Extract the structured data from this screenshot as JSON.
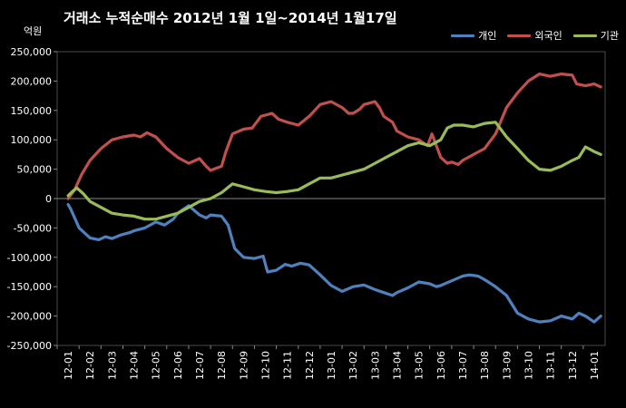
{
  "chart_data": {
    "type": "line",
    "title": "거래소 누적순매수 2012년 1월 1일~2014년 1월17일",
    "ylabel": "억원",
    "xlabel": "",
    "ylim": [
      -250000,
      250000
    ],
    "yticks": [
      "250,000",
      "200,000",
      "150,000",
      "100,000",
      "50,000",
      "0",
      "-50,000",
      "-100,000",
      "-150,000",
      "-200,000",
      "-250,000"
    ],
    "categories": [
      "12-01",
      "12-02",
      "12-03",
      "12-04",
      "12-05",
      "12-06",
      "12-07",
      "12-08",
      "12-09",
      "12-10",
      "12-11",
      "12-12",
      "13-01",
      "13-02",
      "13-03",
      "13-04",
      "13-05",
      "13-06",
      "13-07",
      "13-08",
      "13-09",
      "13-10",
      "13-11",
      "13-12",
      "14-01"
    ],
    "grid": false,
    "legend_position": "top-right",
    "series": [
      {
        "name": "개인",
        "color": "#4f81bd",
        "x": [
          0.0,
          0.12,
          0.5,
          1.0,
          1.4,
          1.7,
          2.0,
          2.4,
          2.8,
          3.0,
          3.5,
          4.0,
          4.4,
          4.8,
          5.0,
          5.5,
          6.0,
          6.3,
          6.5,
          7.0,
          7.3,
          7.6,
          8.0,
          8.5,
          8.9,
          9.1,
          9.5,
          9.9,
          10.2,
          10.6,
          11.0,
          11.5,
          12.0,
          12.5,
          13.0,
          13.5,
          14.0,
          14.4,
          14.8,
          15.0,
          15.5,
          16.0,
          16.5,
          16.8,
          17.0,
          17.5,
          18.0,
          18.3,
          18.7,
          19.0,
          19.5,
          20.0,
          20.5,
          21.0,
          21.5,
          22.0,
          22.5,
          23.0,
          23.3,
          23.6,
          24.0,
          24.3
        ],
        "y": [
          -10000,
          -18000,
          -50000,
          -67000,
          -70000,
          -65000,
          -68000,
          -62000,
          -58000,
          -55000,
          -50000,
          -40000,
          -45000,
          -35000,
          -25000,
          -12000,
          -28000,
          -33000,
          -28000,
          -30000,
          -45000,
          -85000,
          -100000,
          -102000,
          -98000,
          -125000,
          -122000,
          -112000,
          -115000,
          -110000,
          -113000,
          -130000,
          -148000,
          -158000,
          -150000,
          -147000,
          -155000,
          -160000,
          -165000,
          -160000,
          -152000,
          -142000,
          -145000,
          -150000,
          -148000,
          -140000,
          -132000,
          -130000,
          -132000,
          -138000,
          -150000,
          -165000,
          -195000,
          -205000,
          -210000,
          -208000,
          -200000,
          -205000,
          -195000,
          -200000,
          -210000,
          -200000
        ]
      },
      {
        "name": "외국인",
        "color": "#c0504d",
        "x": [
          0.0,
          0.3,
          0.6,
          1.0,
          1.5,
          2.0,
          2.5,
          3.0,
          3.3,
          3.6,
          4.0,
          4.5,
          5.0,
          5.5,
          6.0,
          6.3,
          6.5,
          7.0,
          7.2,
          7.5,
          8.0,
          8.4,
          8.8,
          9.0,
          9.3,
          9.6,
          10.0,
          10.5,
          11.0,
          11.5,
          12.0,
          12.5,
          12.8,
          13.0,
          13.3,
          13.5,
          14.0,
          14.2,
          14.4,
          14.8,
          15.0,
          15.5,
          16.0,
          16.4,
          16.6,
          17.0,
          17.3,
          17.5,
          17.8,
          18.0,
          18.5,
          19.0,
          19.5,
          20.0,
          20.5,
          21.0,
          21.5,
          22.0,
          22.5,
          23.0,
          23.2,
          23.6,
          24.0,
          24.3
        ],
        "y": [
          0,
          15000,
          40000,
          65000,
          85000,
          100000,
          105000,
          108000,
          105000,
          112000,
          105000,
          85000,
          70000,
          60000,
          68000,
          55000,
          48000,
          55000,
          80000,
          110000,
          118000,
          120000,
          140000,
          142000,
          145000,
          135000,
          130000,
          125000,
          140000,
          160000,
          165000,
          155000,
          145000,
          145000,
          152000,
          160000,
          165000,
          155000,
          140000,
          130000,
          115000,
          105000,
          100000,
          90000,
          110000,
          70000,
          60000,
          62000,
          58000,
          65000,
          75000,
          85000,
          110000,
          155000,
          180000,
          200000,
          212000,
          208000,
          212000,
          210000,
          195000,
          192000,
          195000,
          190000
        ]
      },
      {
        "name": "기관",
        "color": "#9bbb59",
        "x": [
          0.0,
          0.2,
          0.4,
          0.7,
          1.0,
          1.5,
          2.0,
          2.5,
          3.0,
          3.5,
          4.0,
          4.5,
          5.0,
          5.5,
          6.0,
          6.5,
          7.0,
          7.5,
          8.0,
          8.5,
          9.0,
          9.5,
          10.0,
          10.5,
          11.0,
          11.5,
          12.0,
          12.5,
          13.0,
          13.5,
          14.0,
          14.5,
          15.0,
          15.5,
          16.0,
          16.5,
          17.0,
          17.3,
          17.6,
          18.0,
          18.5,
          19.0,
          19.5,
          20.0,
          20.5,
          21.0,
          21.5,
          22.0,
          22.5,
          23.0,
          23.3,
          23.6,
          24.0,
          24.3
        ],
        "y": [
          5000,
          12000,
          18000,
          8000,
          -5000,
          -15000,
          -25000,
          -28000,
          -30000,
          -35000,
          -35000,
          -30000,
          -25000,
          -15000,
          -5000,
          0,
          10000,
          25000,
          20000,
          15000,
          12000,
          10000,
          12000,
          15000,
          25000,
          35000,
          35000,
          40000,
          45000,
          50000,
          60000,
          70000,
          80000,
          90000,
          95000,
          90000,
          100000,
          120000,
          125000,
          125000,
          122000,
          128000,
          130000,
          105000,
          85000,
          65000,
          50000,
          48000,
          55000,
          65000,
          70000,
          88000,
          80000,
          75000
        ]
      }
    ]
  }
}
